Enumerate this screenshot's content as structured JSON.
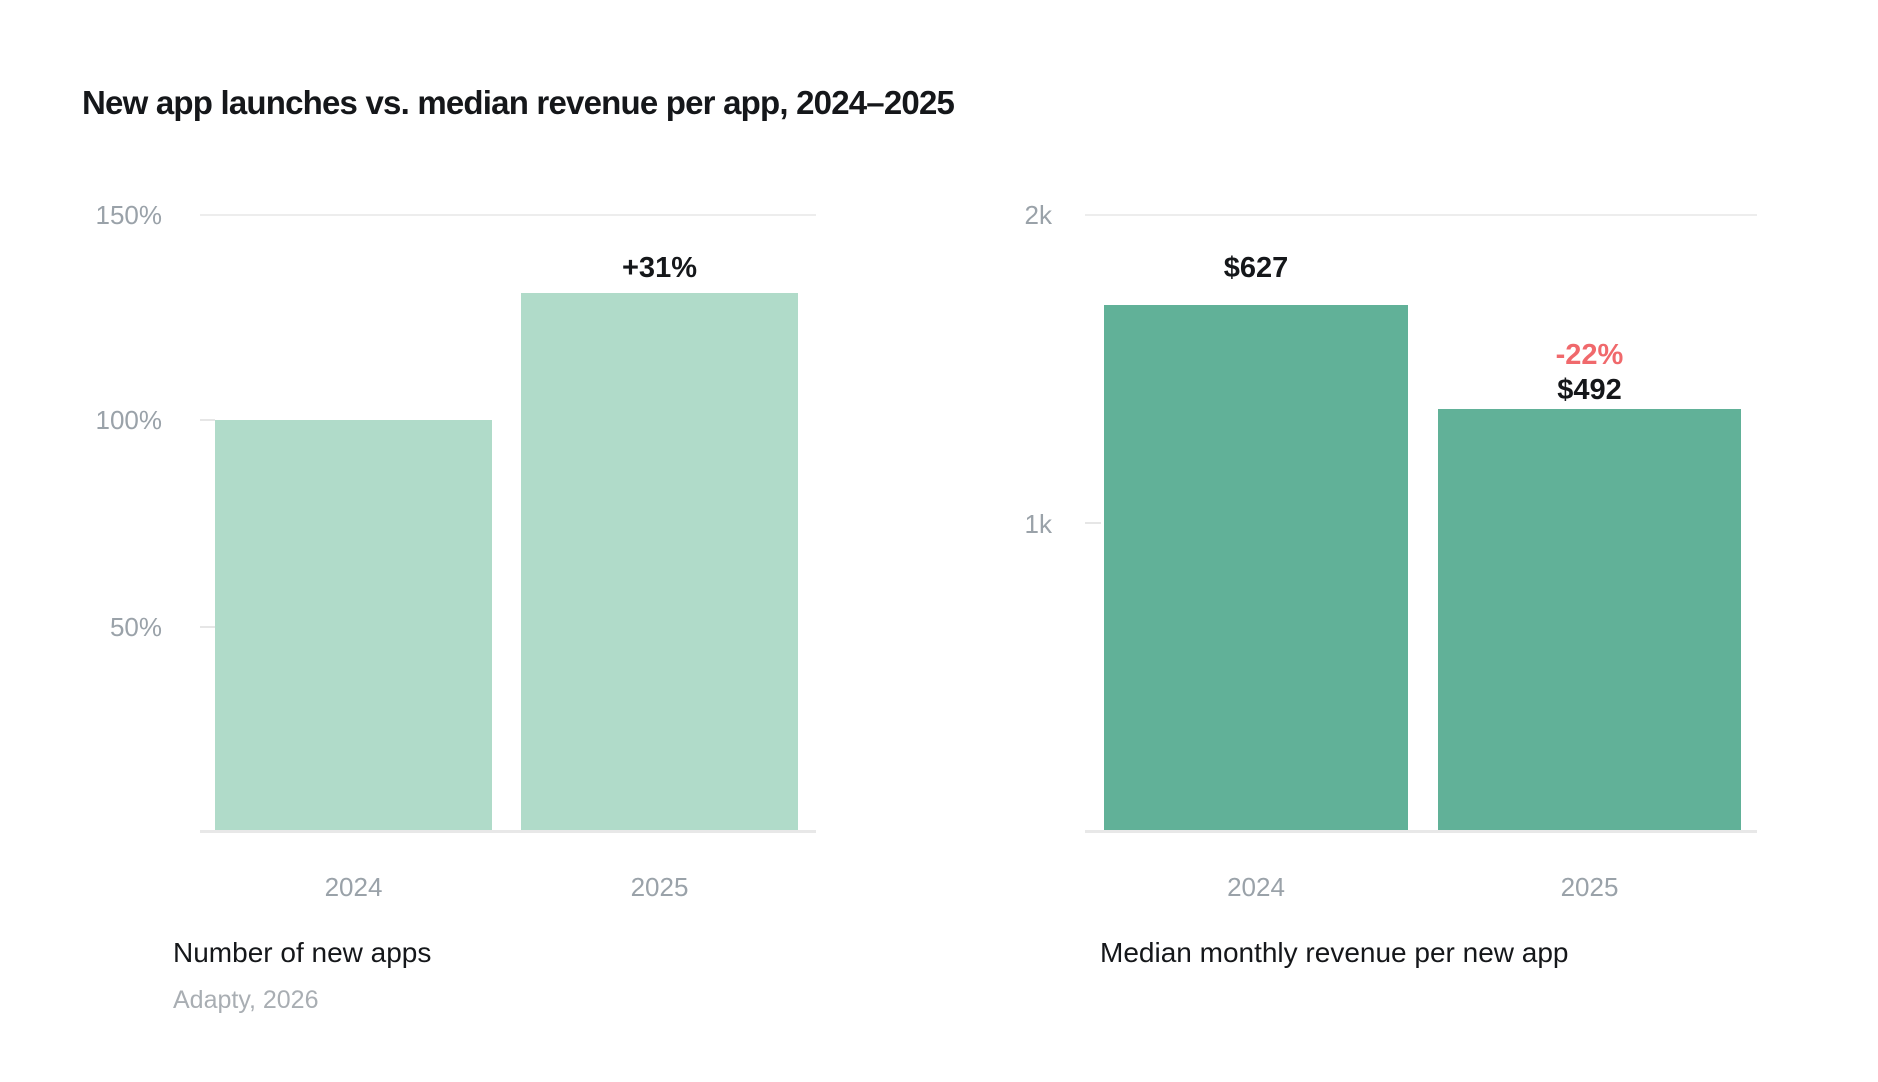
{
  "page_title": "New app launches vs. median revenue per app, 2024–2025",
  "source": "Adapty, 2026",
  "colors": {
    "bar_light_green": "#b0dbc9",
    "bar_green": "#61b198",
    "negative_red": "#f0696c",
    "axis_text_gray": "#9aa2a9",
    "gridline_gray": "#ededed",
    "title_text": "#15171a",
    "source_text": "#a9aeb3",
    "background": "#ffffff"
  },
  "chart_data": [
    {
      "type": "bar",
      "title": "Number of new apps",
      "categories": [
        "2024",
        "2025"
      ],
      "values": [
        100,
        131
      ],
      "unit": "%",
      "bar_labels": [
        "",
        "+31%"
      ],
      "ytick_labels": [
        "150%",
        "100%",
        "50%"
      ],
      "ylim": [
        0,
        150
      ],
      "bar_color": "#b0dbc9",
      "legend": "none",
      "grid": "top gridline at 150% only; short ticks at 100% and 50%"
    },
    {
      "type": "bar",
      "title": "Median monthly revenue per new app",
      "categories": [
        "2024",
        "2025"
      ],
      "values": [
        627,
        492
      ],
      "unit": "USD",
      "bar_labels": [
        "$627",
        "$492"
      ],
      "change_label": "-22%",
      "ytick_labels": [
        "2k",
        "1k"
      ],
      "ylim": [
        0,
        2000
      ],
      "bar_color": "#61b198",
      "legend": "none",
      "grid": "top gridline at 2k only; short tick at 1k"
    }
  ]
}
